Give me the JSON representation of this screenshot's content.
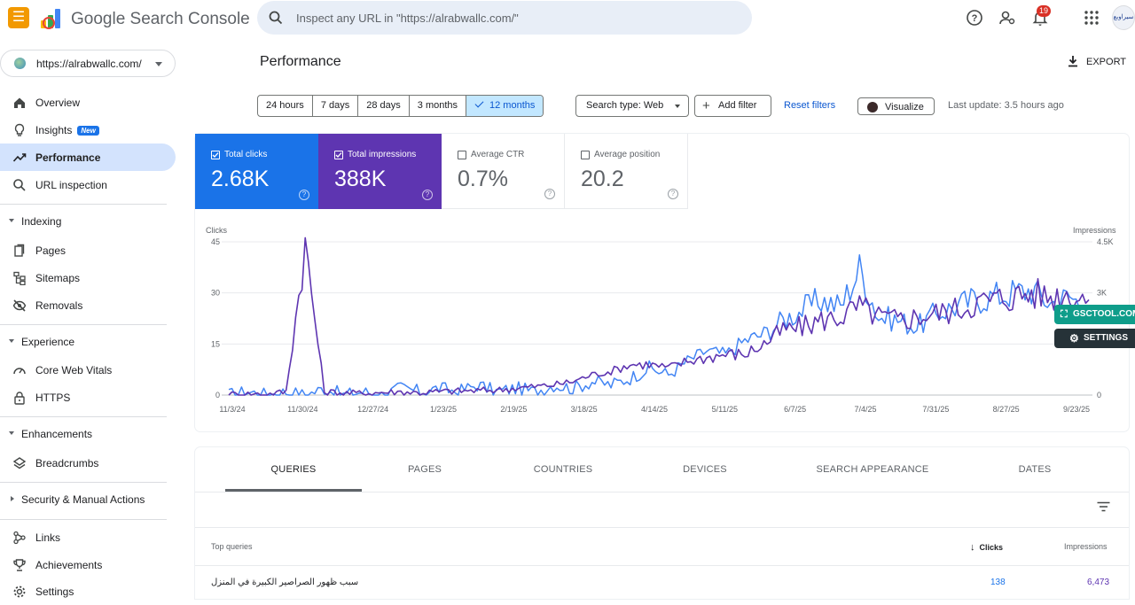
{
  "header": {
    "app_title": "Google Search Console",
    "search_placeholder": "Inspect any URL in \"https://alrabwallc.com/\"",
    "notification_count": "19",
    "avatar_text": "سيراوبع"
  },
  "sidebar": {
    "property": "https://alrabwallc.com/",
    "items": [
      {
        "label": "Overview",
        "icon": "home-icon"
      },
      {
        "label": "Insights",
        "icon": "lightbulb-icon",
        "badge": "New"
      },
      {
        "label": "Performance",
        "icon": "trending-icon",
        "active": true
      },
      {
        "label": "URL inspection",
        "icon": "search-icon"
      }
    ],
    "sections": {
      "indexing": {
        "label": "Indexing",
        "items": [
          {
            "label": "Pages"
          },
          {
            "label": "Sitemaps"
          },
          {
            "label": "Removals"
          }
        ]
      },
      "experience": {
        "label": "Experience",
        "items": [
          {
            "label": "Core Web Vitals"
          },
          {
            "label": "HTTPS"
          }
        ]
      },
      "enhancements": {
        "label": "Enhancements",
        "items": [
          {
            "label": "Breadcrumbs"
          }
        ]
      },
      "security": {
        "label": "Security & Manual Actions"
      }
    },
    "bottom_items": [
      {
        "label": "Links"
      },
      {
        "label": "Achievements"
      },
      {
        "label": "Settings"
      }
    ]
  },
  "main": {
    "title": "Performance",
    "export_label": "EXPORT",
    "date_ranges": [
      "24 hours",
      "7 days",
      "28 days",
      "3 months",
      "12 months"
    ],
    "selected_range": "12 months",
    "search_type": "Search type: Web",
    "add_filter": "Add filter",
    "reset_filters": "Reset filters",
    "visualize": "Visualize",
    "last_update": "Last update: 3.5 hours ago"
  },
  "metrics": [
    {
      "label": "Total clicks",
      "value": "2.68K",
      "checked": true,
      "color": "#1a73e8"
    },
    {
      "label": "Total impressions",
      "value": "388K",
      "checked": true,
      "color": "#5e35b1"
    },
    {
      "label": "Average CTR",
      "value": "0.7%",
      "checked": false
    },
    {
      "label": "Average position",
      "value": "20.2",
      "checked": false
    }
  ],
  "floating": {
    "gsctool": "GSCTOOL.COM",
    "settings": "SETTINGS"
  },
  "chart_data": {
    "type": "line",
    "ylabel_left": "Clicks",
    "ylabel_right": "Impressions",
    "yticks_left": [
      "45",
      "30",
      "15",
      "0"
    ],
    "yticks_right": [
      "4.5K",
      "3K",
      "0"
    ],
    "ylim_left": [
      0,
      45
    ],
    "ylim_right": [
      0,
      4500
    ],
    "x_tick_labels": [
      "11/3/24",
      "11/30/24",
      "12/27/24",
      "1/23/25",
      "2/19/25",
      "3/18/25",
      "4/14/25",
      "5/11/25",
      "6/7/25",
      "7/4/25",
      "7/31/25",
      "8/27/25",
      "9/23/25"
    ],
    "series": [
      {
        "name": "Total clicks",
        "color": "#4285f4",
        "axis": "left",
        "points": [
          [
            0,
            0
          ],
          [
            1,
            1
          ],
          [
            2,
            0
          ],
          [
            3,
            1
          ],
          [
            4,
            0
          ],
          [
            5,
            2
          ],
          [
            6,
            0
          ],
          [
            7,
            1
          ],
          [
            8,
            0
          ],
          [
            9,
            2
          ],
          [
            10,
            1
          ],
          [
            11,
            2
          ],
          [
            12,
            1
          ],
          [
            13,
            3
          ],
          [
            14,
            1
          ],
          [
            15,
            2
          ],
          [
            16,
            1
          ],
          [
            17,
            3
          ],
          [
            18,
            2
          ],
          [
            19,
            4
          ],
          [
            20,
            3
          ],
          [
            21,
            5
          ],
          [
            22,
            8
          ],
          [
            23,
            6
          ],
          [
            24,
            10
          ],
          [
            25,
            13
          ],
          [
            26,
            12
          ],
          [
            27,
            16
          ],
          [
            28,
            18
          ],
          [
            29,
            22
          ],
          [
            30,
            25
          ],
          [
            31,
            28
          ],
          [
            32,
            26
          ],
          [
            33,
            37
          ],
          [
            34,
            23
          ],
          [
            35,
            22
          ],
          [
            36,
            20
          ],
          [
            37,
            24
          ],
          [
            38,
            26
          ],
          [
            39,
            28
          ],
          [
            40,
            29
          ],
          [
            41,
            30
          ],
          [
            42,
            31
          ],
          [
            43,
            27
          ],
          [
            44,
            29
          ],
          [
            45,
            25
          ]
        ]
      },
      {
        "name": "Total impressions",
        "color": "#5e35b1",
        "axis": "right",
        "points": [
          [
            0,
            20
          ],
          [
            1,
            30
          ],
          [
            2,
            20
          ],
          [
            3,
            100
          ],
          [
            4,
            4400
          ],
          [
            5,
            100
          ],
          [
            6,
            60
          ],
          [
            7,
            50
          ],
          [
            8,
            80
          ],
          [
            9,
            100
          ],
          [
            10,
            70
          ],
          [
            11,
            100
          ],
          [
            12,
            120
          ],
          [
            13,
            130
          ],
          [
            14,
            150
          ],
          [
            15,
            200
          ],
          [
            16,
            250
          ],
          [
            17,
            300
          ],
          [
            18,
            400
          ],
          [
            19,
            600
          ],
          [
            20,
            700
          ],
          [
            21,
            900
          ],
          [
            22,
            900
          ],
          [
            23,
            800
          ],
          [
            24,
            1000
          ],
          [
            25,
            1100
          ],
          [
            26,
            1200
          ],
          [
            27,
            1200
          ],
          [
            28,
            1500
          ],
          [
            29,
            1900
          ],
          [
            30,
            2000
          ],
          [
            31,
            2200
          ],
          [
            32,
            2300
          ],
          [
            33,
            2600
          ],
          [
            34,
            2300
          ],
          [
            35,
            2200
          ],
          [
            36,
            2300
          ],
          [
            37,
            2400
          ],
          [
            38,
            2500
          ],
          [
            39,
            2700
          ],
          [
            40,
            2800
          ],
          [
            41,
            2900
          ],
          [
            42,
            3000
          ],
          [
            43,
            2900
          ],
          [
            44,
            3000
          ],
          [
            45,
            2800
          ]
        ]
      }
    ]
  },
  "tabs": [
    "QUERIES",
    "PAGES",
    "COUNTRIES",
    "DEVICES",
    "SEARCH APPEARANCE",
    "DATES"
  ],
  "table": {
    "headers": {
      "query": "Top queries",
      "clicks": "Clicks",
      "impressions": "Impressions"
    },
    "rows": [
      {
        "query": "سبب ظهور الصراصير الكبيرة في المنزل",
        "clicks": "138",
        "impressions": "6,473"
      }
    ]
  }
}
